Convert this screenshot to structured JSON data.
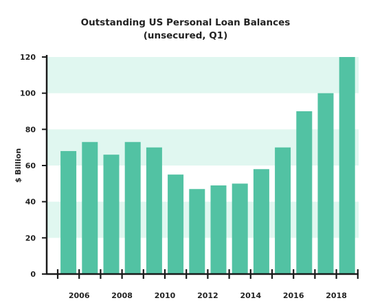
{
  "chart_data": {
    "type": "bar",
    "title_line1": "Outstanding US Personal Loan Balances",
    "title_line2": "(unsecured, Q1)",
    "ylabel": "$ Billion",
    "xlabel": "",
    "categories": [
      "2005",
      "2006",
      "2007",
      "2008",
      "2009",
      "2010",
      "2011",
      "2012",
      "2013",
      "2014",
      "2015",
      "2016",
      "2017",
      "2018"
    ],
    "values": [
      68,
      73,
      66,
      73,
      70,
      55,
      47,
      49,
      50,
      58,
      70,
      90,
      100,
      120
    ],
    "x_tick_labels": [
      "2006",
      "2008",
      "2010",
      "2012",
      "2014",
      "2016",
      "2018"
    ],
    "y_ticks": [
      0,
      20,
      40,
      60,
      80,
      100,
      120
    ],
    "ylim": [
      0,
      120
    ],
    "grid": "alternating horizontal bands",
    "legend": "none",
    "colors": {
      "bar": "#52c2a3",
      "band": "#e0f7f0",
      "axis": "#1a1a1a"
    }
  }
}
